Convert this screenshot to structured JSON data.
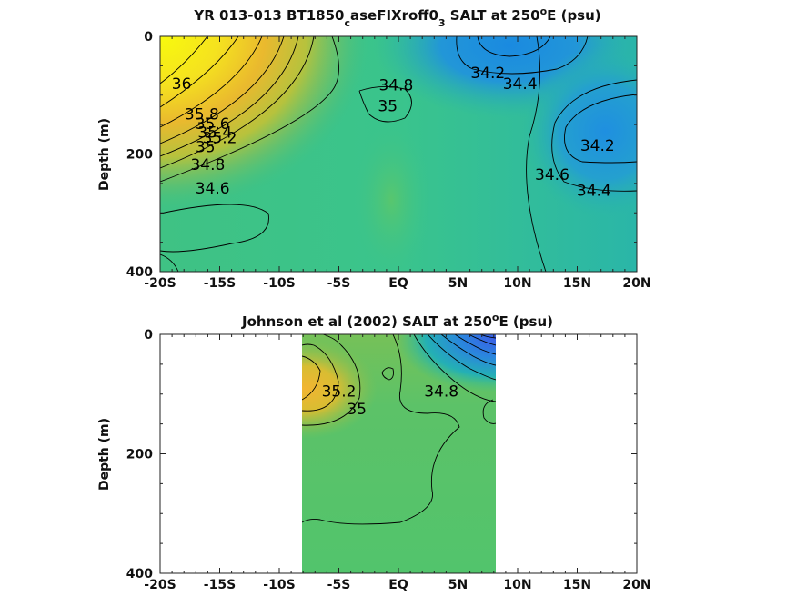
{
  "chart_data": [
    {
      "type": "heatmap",
      "title_parts": [
        "YR 013-013 BT1850",
        "c",
        "aseFIXroff0",
        "3",
        " SALT at 250",
        "o",
        "E (psu)"
      ],
      "xlabel": "",
      "ylabel": "Depth (m)",
      "xlim": [
        -20,
        20
      ],
      "ylim": [
        0,
        400
      ],
      "y_reversed": true,
      "x_tick_labels": [
        "-20S",
        "-15S",
        "-10S",
        "-5S",
        "EQ",
        "5N",
        "10N",
        "15N",
        "20N"
      ],
      "x_tick_values": [
        -20,
        -15,
        -10,
        -5,
        0,
        5,
        10,
        15,
        20
      ],
      "y_tick_labels": [
        "0",
        "200",
        "400"
      ],
      "y_tick_values": [
        0,
        200,
        400
      ],
      "data_extent_x": [
        -20,
        20
      ],
      "contour_labels": [
        {
          "text": "36",
          "x": -18.2,
          "y": 80
        },
        {
          "text": "35.8",
          "x": -16.5,
          "y": 132
        },
        {
          "text": "35.6",
          "x": -15.6,
          "y": 148
        },
        {
          "text": "35.4",
          "x": -15.4,
          "y": 163
        },
        {
          "text": "35.2",
          "x": -15.0,
          "y": 172
        },
        {
          "text": "35",
          "x": -16.2,
          "y": 188
        },
        {
          "text": "34.8",
          "x": -16.0,
          "y": 218
        },
        {
          "text": "34.6",
          "x": -15.6,
          "y": 258
        },
        {
          "text": "34.8",
          "x": -0.2,
          "y": 83
        },
        {
          "text": "35",
          "x": -0.9,
          "y": 118
        },
        {
          "text": "34.2",
          "x": 7.5,
          "y": 62
        },
        {
          "text": "34.4",
          "x": 10.2,
          "y": 80
        },
        {
          "text": "34.2",
          "x": 16.7,
          "y": 185
        },
        {
          "text": "34.6",
          "x": 12.9,
          "y": 235
        },
        {
          "text": "34.4",
          "x": 16.4,
          "y": 262
        }
      ]
    },
    {
      "type": "heatmap",
      "title_parts": [
        "Johnson et al (2002) SALT at 250",
        "o",
        "E (psu)"
      ],
      "xlabel": "",
      "ylabel": "Depth (m)",
      "xlim": [
        -20,
        20
      ],
      "ylim": [
        0,
        400
      ],
      "y_reversed": true,
      "x_tick_labels": [
        "-20S",
        "-15S",
        "-10S",
        "-5S",
        "EQ",
        "5N",
        "10N",
        "15N",
        "20N"
      ],
      "x_tick_values": [
        -20,
        -15,
        -10,
        -5,
        0,
        5,
        10,
        15,
        20
      ],
      "y_tick_labels": [
        "0",
        "200",
        "400"
      ],
      "y_tick_values": [
        0,
        200,
        400
      ],
      "data_extent_x": [
        -8,
        8.3
      ],
      "contour_labels": [
        {
          "text": "35.2",
          "x": -5.0,
          "y": 95
        },
        {
          "text": "35",
          "x": -3.5,
          "y": 125
        },
        {
          "text": "34.8",
          "x": 3.6,
          "y": 95
        }
      ]
    }
  ]
}
